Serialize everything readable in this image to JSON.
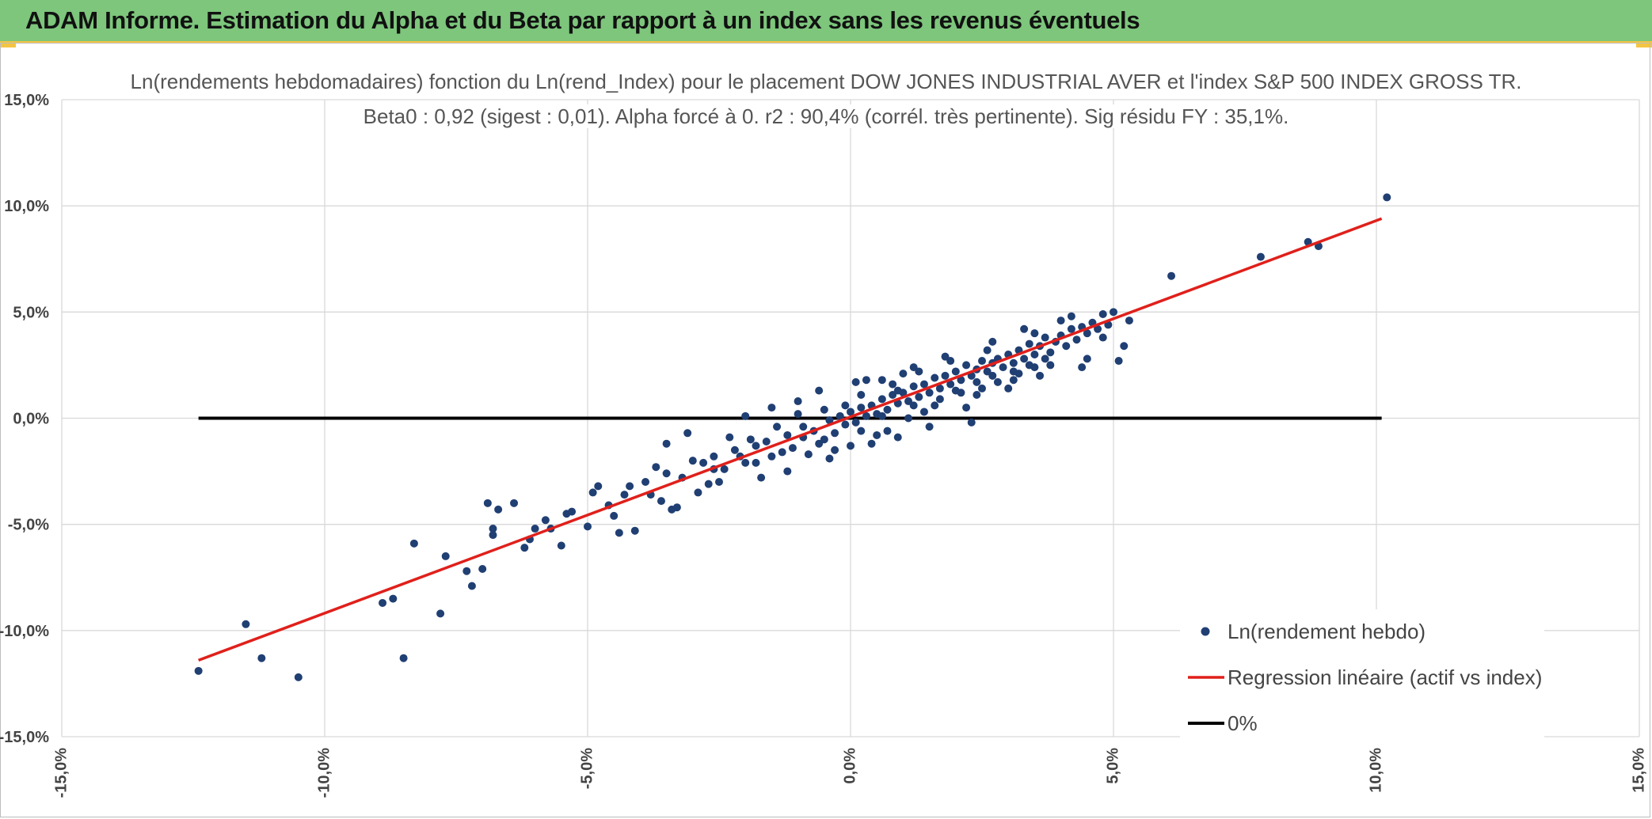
{
  "header": {
    "title": "ADAM Informe. Estimation du Alpha et du Beta par rapport à un index sans les revenus éventuels"
  },
  "colors": {
    "banner": "#7dc67c",
    "accent": "#f4c542",
    "points": "#203f73",
    "regression": "#e0201b",
    "zero_line": "#000000",
    "grid": "#d9d9d9"
  },
  "chart_data": {
    "type": "scatter",
    "title": "Ln(rendements hebdomadaires) fonction du Ln(rend_Index) pour le placement DOW JONES INDUSTRIAL AVER et l'index S&P 500 INDEX GROSS TR.",
    "subtitle": "Beta0 : 0,92 (sigest : 0,01). Alpha forcé à 0. r2 : 90,4% (corrél. très pertinente). Sig résidu FY : 35,1%.",
    "xlabel": "",
    "ylabel": "",
    "xlim": [
      -0.15,
      0.15
    ],
    "ylim": [
      -0.15,
      0.15
    ],
    "grid": true,
    "legend_position": "bottom-right",
    "x_ticks": [
      "-15,0%",
      "-10,0%",
      "-5,0%",
      "0,0%",
      "5,0%",
      "10,0%",
      "15,0%"
    ],
    "y_ticks": [
      "15,0%",
      "10,0%",
      "5,0%",
      "0,0%",
      "-5,0%",
      "-10,0%",
      "-15,0%"
    ],
    "series": [
      {
        "name": "Ln(rendement hebdo)",
        "kind": "scatter",
        "points": [
          [
            -0.124,
            -0.119
          ],
          [
            -0.115,
            -0.097
          ],
          [
            -0.112,
            -0.113
          ],
          [
            -0.105,
            -0.122
          ],
          [
            -0.089,
            -0.087
          ],
          [
            -0.087,
            -0.085
          ],
          [
            -0.085,
            -0.113
          ],
          [
            -0.083,
            -0.059
          ],
          [
            -0.078,
            -0.092
          ],
          [
            -0.077,
            -0.065
          ],
          [
            -0.073,
            -0.072
          ],
          [
            -0.072,
            -0.079
          ],
          [
            -0.07,
            -0.071
          ],
          [
            -0.069,
            -0.04
          ],
          [
            -0.068,
            -0.052
          ],
          [
            -0.068,
            -0.055
          ],
          [
            -0.067,
            -0.043
          ],
          [
            -0.064,
            -0.04
          ],
          [
            -0.062,
            -0.061
          ],
          [
            -0.061,
            -0.057
          ],
          [
            -0.06,
            -0.052
          ],
          [
            -0.058,
            -0.048
          ],
          [
            -0.057,
            -0.052
          ],
          [
            -0.055,
            -0.06
          ],
          [
            -0.054,
            -0.045
          ],
          [
            -0.053,
            -0.044
          ],
          [
            -0.05,
            -0.051
          ],
          [
            -0.049,
            -0.035
          ],
          [
            -0.048,
            -0.032
          ],
          [
            -0.046,
            -0.041
          ],
          [
            -0.044,
            -0.054
          ],
          [
            -0.043,
            -0.036
          ],
          [
            -0.042,
            -0.032
          ],
          [
            -0.041,
            -0.053
          ],
          [
            -0.039,
            -0.03
          ],
          [
            -0.038,
            -0.036
          ],
          [
            -0.037,
            -0.023
          ],
          [
            -0.036,
            -0.039
          ],
          [
            -0.035,
            -0.026
          ],
          [
            -0.034,
            -0.043
          ],
          [
            -0.033,
            -0.042
          ],
          [
            -0.031,
            -0.007
          ],
          [
            -0.03,
            -0.02
          ],
          [
            -0.029,
            -0.035
          ],
          [
            -0.028,
            -0.021
          ],
          [
            -0.026,
            -0.018
          ],
          [
            -0.025,
            -0.03
          ],
          [
            -0.024,
            -0.024
          ],
          [
            -0.022,
            -0.015
          ],
          [
            -0.02,
            -0.021
          ],
          [
            -0.019,
            -0.01
          ],
          [
            -0.018,
            -0.013
          ],
          [
            -0.016,
            -0.011
          ],
          [
            -0.015,
            -0.018
          ],
          [
            -0.014,
            -0.004
          ],
          [
            -0.012,
            -0.008
          ],
          [
            -0.011,
            -0.014
          ],
          [
            -0.01,
            0.002
          ],
          [
            -0.009,
            -0.009
          ],
          [
            -0.007,
            -0.006
          ],
          [
            -0.006,
            -0.012
          ],
          [
            -0.005,
            0.004
          ],
          [
            -0.004,
            -0.001
          ],
          [
            -0.003,
            -0.007
          ],
          [
            -0.002,
            0.001
          ],
          [
            -0.001,
            -0.003
          ],
          [
            0.0,
            0.003
          ],
          [
            0.001,
            -0.002
          ],
          [
            0.002,
            0.005
          ],
          [
            0.003,
            0.001
          ],
          [
            0.004,
            0.006
          ],
          [
            0.005,
            0.002
          ],
          [
            0.006,
            0.009
          ],
          [
            0.007,
            0.004
          ],
          [
            0.008,
            0.011
          ],
          [
            0.009,
            0.007
          ],
          [
            0.01,
            0.012
          ],
          [
            0.011,
            0.008
          ],
          [
            0.012,
            0.015
          ],
          [
            0.013,
            0.01
          ],
          [
            0.014,
            0.016
          ],
          [
            0.015,
            0.012
          ],
          [
            0.016,
            0.019
          ],
          [
            0.017,
            0.014
          ],
          [
            0.018,
            0.02
          ],
          [
            0.019,
            0.016
          ],
          [
            0.02,
            0.022
          ],
          [
            0.021,
            0.018
          ],
          [
            0.022,
            0.025
          ],
          [
            0.023,
            0.02
          ],
          [
            0.024,
            0.023
          ],
          [
            0.025,
            0.027
          ],
          [
            0.026,
            0.022
          ],
          [
            0.027,
            0.026
          ],
          [
            0.028,
            0.028
          ],
          [
            0.029,
            0.024
          ],
          [
            0.03,
            0.03
          ],
          [
            0.031,
            0.026
          ],
          [
            0.032,
            0.032
          ],
          [
            0.033,
            0.028
          ],
          [
            0.034,
            0.035
          ],
          [
            0.035,
            0.03
          ],
          [
            0.036,
            0.034
          ],
          [
            0.037,
            0.038
          ],
          [
            0.038,
            0.031
          ],
          [
            0.039,
            0.036
          ],
          [
            0.04,
            0.039
          ],
          [
            0.041,
            0.034
          ],
          [
            0.042,
            0.042
          ],
          [
            0.043,
            0.037
          ],
          [
            0.044,
            0.043
          ],
          [
            0.045,
            0.04
          ],
          [
            0.046,
            0.045
          ],
          [
            0.047,
            0.042
          ],
          [
            0.048,
            0.049
          ],
          [
            0.049,
            0.044
          ],
          [
            0.05,
            0.05
          ],
          [
            0.051,
            0.027
          ],
          [
            0.052,
            0.034
          ],
          [
            0.053,
            0.046
          ],
          [
            0.061,
            0.067
          ],
          [
            0.078,
            0.076
          ],
          [
            0.087,
            0.083
          ],
          [
            0.089,
            0.081
          ],
          [
            0.102,
            0.104
          ],
          [
            -0.02,
            0.001
          ],
          [
            -0.018,
            -0.021
          ],
          [
            -0.015,
            0.005
          ],
          [
            -0.012,
            -0.025
          ],
          [
            -0.008,
            -0.017
          ],
          [
            -0.006,
            0.013
          ],
          [
            -0.003,
            -0.015
          ],
          [
            0.001,
            0.017
          ],
          [
            0.004,
            -0.012
          ],
          [
            0.006,
            0.018
          ],
          [
            0.009,
            -0.009
          ],
          [
            0.012,
            0.024
          ],
          [
            0.015,
            -0.004
          ],
          [
            0.018,
            0.029
          ],
          [
            0.022,
            0.005
          ],
          [
            0.026,
            0.032
          ],
          [
            0.03,
            0.014
          ],
          [
            0.033,
            0.042
          ],
          [
            0.036,
            0.02
          ],
          [
            0.04,
            0.046
          ],
          [
            0.044,
            0.024
          ],
          [
            -0.035,
            -0.012
          ],
          [
            -0.027,
            -0.031
          ],
          [
            -0.023,
            -0.009
          ],
          [
            -0.017,
            -0.028
          ],
          [
            -0.01,
            0.008
          ],
          [
            -0.004,
            -0.019
          ],
          [
            0.002,
            0.011
          ],
          [
            0.007,
            -0.006
          ],
          [
            0.01,
            0.021
          ],
          [
            0.014,
            0.003
          ],
          [
            0.019,
            0.027
          ],
          [
            0.024,
            0.011
          ],
          [
            0.027,
            0.036
          ],
          [
            0.031,
            0.018
          ],
          [
            0.035,
            0.04
          ],
          [
            0.038,
            0.025
          ],
          [
            0.042,
            0.048
          ],
          [
            0.045,
            0.028
          ],
          [
            0.048,
            0.038
          ],
          [
            0.0,
            -0.013
          ],
          [
            0.003,
            0.018
          ],
          [
            0.005,
            -0.008
          ],
          [
            0.008,
            0.016
          ],
          [
            0.011,
            0.0
          ],
          [
            0.013,
            0.022
          ],
          [
            0.016,
            0.006
          ],
          [
            0.021,
            0.012
          ],
          [
            0.023,
            -0.002
          ],
          [
            0.025,
            0.014
          ],
          [
            0.028,
            0.017
          ],
          [
            0.032,
            0.021
          ],
          [
            0.034,
            0.025
          ],
          [
            0.037,
            0.028
          ],
          [
            -0.045,
            -0.046
          ],
          [
            -0.032,
            -0.028
          ],
          [
            -0.026,
            -0.024
          ],
          [
            -0.021,
            -0.018
          ],
          [
            -0.013,
            -0.016
          ],
          [
            -0.009,
            -0.004
          ],
          [
            -0.005,
            -0.01
          ],
          [
            -0.001,
            0.006
          ],
          [
            0.002,
            -0.006
          ],
          [
            0.006,
            0.001
          ],
          [
            0.009,
            0.013
          ],
          [
            0.012,
            0.006
          ],
          [
            0.017,
            0.009
          ],
          [
            0.02,
            0.013
          ],
          [
            0.024,
            0.017
          ],
          [
            0.027,
            0.02
          ],
          [
            0.031,
            0.022
          ],
          [
            0.035,
            0.024
          ]
        ]
      },
      {
        "name": "Regression linéaire (actif vs index)",
        "kind": "line",
        "points": [
          [
            -0.124,
            -0.114
          ],
          [
            0.101,
            0.094
          ]
        ]
      },
      {
        "name": "0%",
        "kind": "line",
        "points": [
          [
            -0.124,
            0.0
          ],
          [
            0.101,
            0.0
          ]
        ]
      }
    ]
  }
}
